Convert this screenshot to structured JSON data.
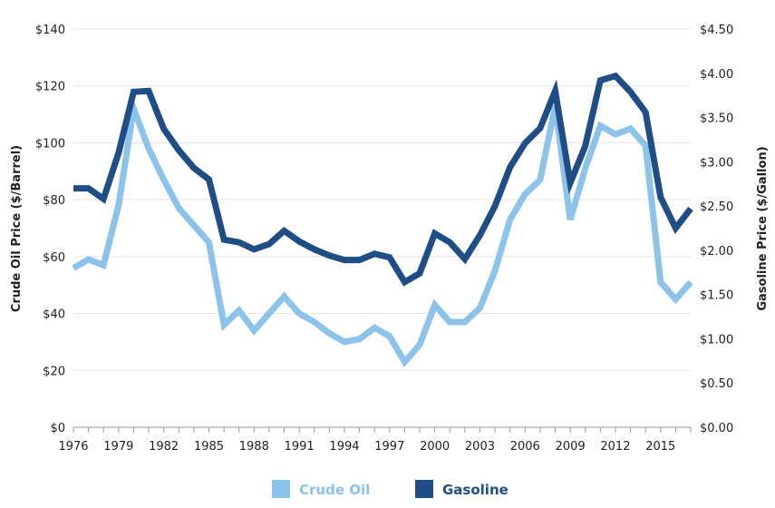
{
  "chart_data": {
    "type": "line",
    "title": "",
    "xlabel": "",
    "ylabel": "Crude Oil Price ($/Barrel)",
    "y2label": "Gasoline Price ($/Gallon)",
    "x": [
      1976,
      1977,
      1978,
      1979,
      1980,
      1981,
      1982,
      1983,
      1984,
      1985,
      1986,
      1987,
      1988,
      1989,
      1990,
      1991,
      1992,
      1993,
      1994,
      1995,
      1996,
      1997,
      1998,
      1999,
      2000,
      2001,
      2002,
      2003,
      2004,
      2005,
      2006,
      2007,
      2008,
      2009,
      2010,
      2011,
      2012,
      2013,
      2014,
      2015,
      2016,
      2017
    ],
    "xlim": [
      1976,
      2017
    ],
    "ylim": [
      0,
      140
    ],
    "y2lim": [
      0,
      4.5
    ],
    "x_ticks": [
      "1976",
      "1979",
      "1982",
      "1985",
      "1988",
      "1991",
      "1994",
      "1997",
      "2000",
      "2003",
      "2006",
      "2009",
      "2012",
      "2015"
    ],
    "y_ticks": [
      "$0",
      "$20",
      "$40",
      "$60",
      "$80",
      "$100",
      "$120",
      "$140"
    ],
    "y2_ticks": [
      "$0.00",
      "$0.50",
      "$1.00",
      "$1.50",
      "$2.00",
      "$2.50",
      "$3.00",
      "$3.50",
      "$4.00",
      "$4.50"
    ],
    "grid": true,
    "legend_position": "bottom",
    "series": [
      {
        "name": "Crude Oil",
        "axis": "left",
        "color": "#8cc3ea",
        "values": [
          56,
          59,
          57,
          78,
          112,
          98,
          87,
          77,
          71,
          65,
          36,
          41,
          34,
          40,
          46,
          40,
          37,
          33,
          30,
          31,
          35,
          32,
          23,
          29,
          43,
          37,
          37,
          42,
          55,
          73,
          82,
          87,
          113,
          73,
          91,
          106,
          103,
          105,
          99,
          51,
          45,
          51
        ]
      },
      {
        "name": "Gasoline",
        "axis": "right",
        "color": "#1f4e87",
        "values": [
          2.7,
          2.7,
          2.58,
          3.1,
          3.79,
          3.8,
          3.37,
          3.13,
          2.93,
          2.8,
          2.12,
          2.09,
          2.01,
          2.07,
          2.22,
          2.1,
          2.01,
          1.94,
          1.89,
          1.89,
          1.96,
          1.92,
          1.64,
          1.74,
          2.19,
          2.09,
          1.9,
          2.17,
          2.5,
          2.94,
          3.21,
          3.38,
          3.8,
          2.76,
          3.18,
          3.92,
          3.97,
          3.79,
          3.56,
          2.6,
          2.25,
          2.47
        ]
      }
    ]
  }
}
